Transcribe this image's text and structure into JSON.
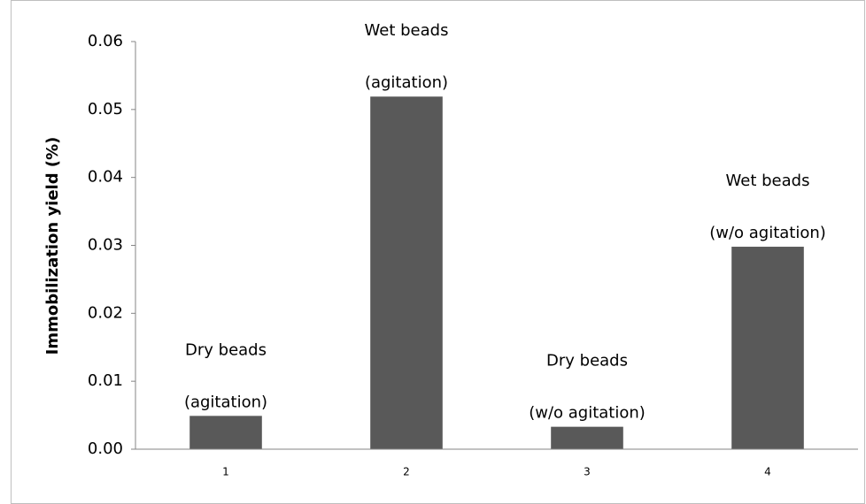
{
  "chart_data": {
    "type": "bar",
    "y_label": "Immobilization yield (%)",
    "categories": [
      "1",
      "2",
      "3",
      "4"
    ],
    "values": [
      0.0049,
      0.0519,
      0.0033,
      0.0298
    ],
    "annotations": [
      [
        "Dry beads",
        "(agitation)"
      ],
      [
        "Wet beads",
        "(agitation)"
      ],
      [
        "Dry beads",
        "(w/o agitation)"
      ],
      [
        "Wet beads",
        "(w/o agitation)"
      ]
    ],
    "color": "#595959",
    "ylim": [
      0,
      0.06
    ],
    "yticks": [
      {
        "value": 0,
        "label": "0.00"
      },
      0.01,
      0.02,
      0.03,
      0.04,
      0.05,
      0.06
    ],
    "grid": false
  }
}
